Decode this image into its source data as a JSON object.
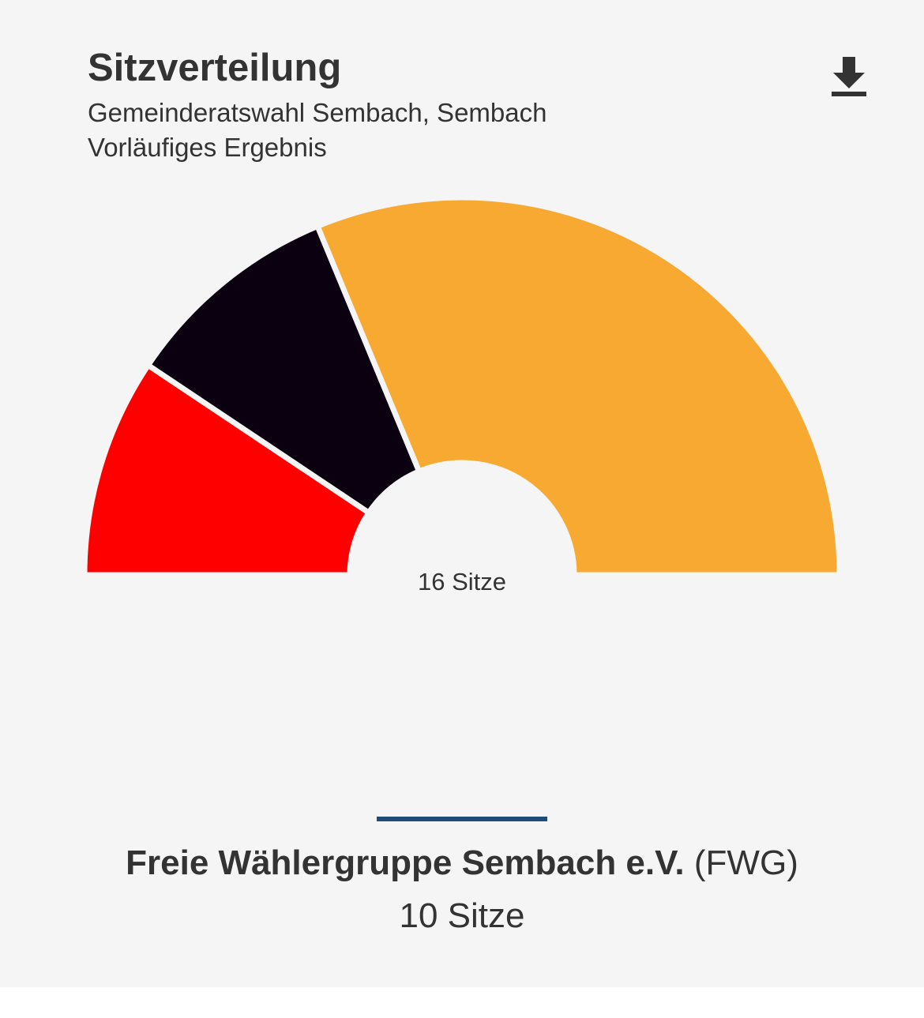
{
  "header": {
    "title": "Sitzverteilung",
    "subtitle_line1": "Gemeinderatswahl Sembach, Sembach",
    "subtitle_line2": "Vorläufiges Ergebnis",
    "download_icon": "download-icon"
  },
  "chart_data": {
    "type": "pie",
    "variant": "half-donut",
    "total_label": "16 Sitze",
    "total_seats": 16,
    "slices": [
      {
        "value": 3,
        "color": "#ff0000"
      },
      {
        "value": 3,
        "color": "#0a0010"
      },
      {
        "value": 10,
        "color": "#f7a931"
      }
    ]
  },
  "selection": {
    "indicator_color": "#1e4b7a",
    "party_name": "Freie Wählergruppe Sembach e.V.",
    "party_abbr": "(FWG)",
    "seats_label": "10 Sitze"
  }
}
